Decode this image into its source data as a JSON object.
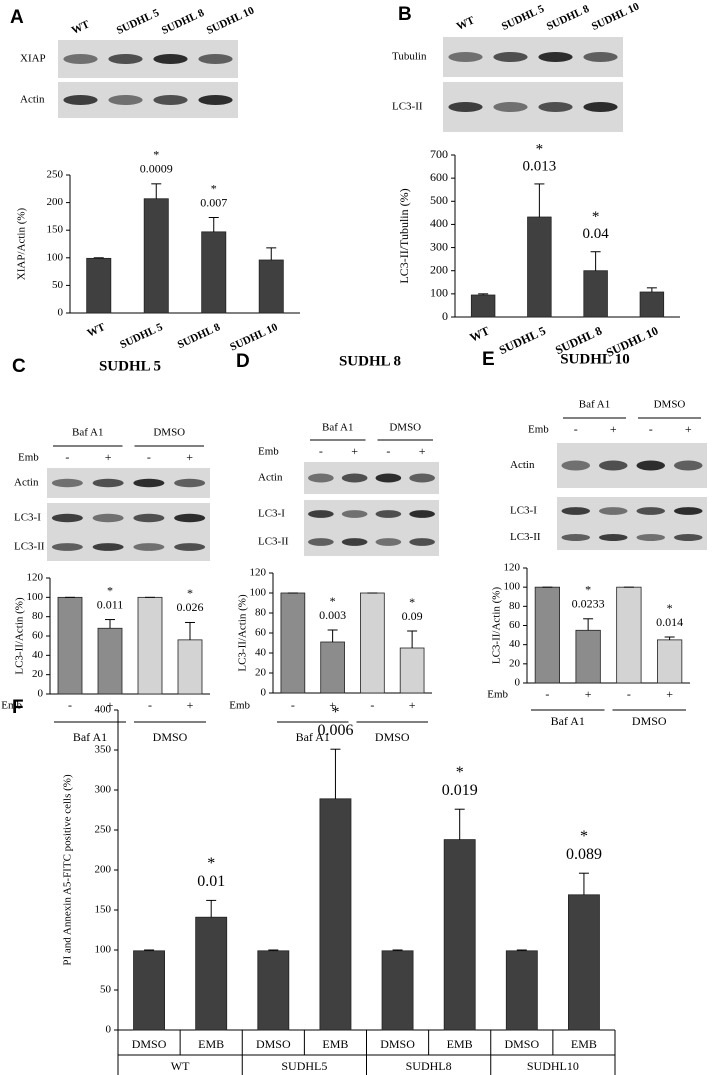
{
  "chart_data": [
    {
      "type": "bar",
      "panel": "A",
      "blot": {
        "lanes": [
          "WT",
          "SUDHL 5",
          "SUDHL 8",
          "SUDHL 10"
        ],
        "rows": [
          "XIAP",
          "Actin"
        ]
      },
      "ylabel": "XIAP/Actin (%)",
      "ylim": [
        0,
        250
      ],
      "yticks": [
        0,
        50,
        100,
        150,
        200,
        250
      ],
      "categories": [
        "WT",
        "SUDHL 5",
        "SUDHL 8",
        "SUDHL 10"
      ],
      "values": [
        99,
        207,
        147,
        96
      ],
      "errors": [
        1,
        27,
        26,
        22
      ],
      "color": "#404040",
      "stars": [
        null,
        "*",
        "*",
        null
      ],
      "annotations": [
        null,
        "0.0009",
        "0.007",
        null
      ]
    },
    {
      "type": "bar",
      "panel": "B",
      "blot": {
        "lanes": [
          "WT",
          "SUDHL 5",
          "SUDHL 8",
          "SUDHL 10"
        ],
        "rows": [
          "Tubulin",
          "LC3-II"
        ]
      },
      "ylabel": "LC3-II/Tubulin (%)",
      "ylim": [
        0,
        700
      ],
      "yticks": [
        0,
        100,
        200,
        300,
        400,
        500,
        600,
        700
      ],
      "categories": [
        "WT",
        "SUDHL 5",
        "SUDHL 8",
        "SUDHL 10"
      ],
      "values": [
        95,
        432,
        200,
        108
      ],
      "errors": [
        5,
        143,
        82,
        18
      ],
      "color": "#404040",
      "stars": [
        null,
        "*",
        "*",
        null
      ],
      "annotations": [
        null,
        "0.013",
        "0.04",
        null
      ]
    },
    {
      "type": "bar",
      "panel": "C",
      "title": "SUDHL 5",
      "blot": {
        "rows": [
          "Actin",
          "LC3-I",
          "LC3-II"
        ]
      },
      "ylabel": "LC3-II/Actin (%)",
      "ylim": [
        0,
        120
      ],
      "yticks": [
        0,
        20,
        40,
        60,
        80,
        100,
        120
      ],
      "x_label": "Emb",
      "categories": [
        "-",
        "+",
        "-",
        "+"
      ],
      "groups": [
        "Baf A1",
        "DMSO"
      ],
      "values": [
        100,
        68,
        100,
        56
      ],
      "errors": [
        0,
        9,
        0,
        18
      ],
      "colors": [
        "#8c8c8c",
        "#8c8c8c",
        "#d3d3d3",
        "#d3d3d3"
      ],
      "stars": [
        null,
        "*",
        null,
        "*"
      ],
      "annotations": [
        null,
        "0.011",
        null,
        "0.026"
      ]
    },
    {
      "type": "bar",
      "panel": "D",
      "title": "SUDHL 8",
      "blot": {
        "rows": [
          "Actin",
          "LC3-I",
          "LC3-II"
        ]
      },
      "ylabel": "LC3-II/Actin (%)",
      "ylim": [
        0,
        120
      ],
      "yticks": [
        0,
        20,
        40,
        60,
        80,
        100,
        120
      ],
      "x_label": "Emb",
      "categories": [
        "-",
        "+",
        "-",
        "+"
      ],
      "groups": [
        "Baf A1",
        "DMSO"
      ],
      "values": [
        100,
        51,
        100,
        45
      ],
      "errors": [
        0,
        12,
        0,
        17
      ],
      "colors": [
        "#8c8c8c",
        "#8c8c8c",
        "#d3d3d3",
        "#d3d3d3"
      ],
      "stars": [
        null,
        "*",
        null,
        "*"
      ],
      "annotations": [
        null,
        "0.003",
        null,
        "0.09"
      ]
    },
    {
      "type": "bar",
      "panel": "E",
      "title": "SUDHL 10",
      "blot": {
        "rows": [
          "Actin",
          "LC3-I",
          "LC3-II"
        ]
      },
      "ylabel": "LC3-II/Actin (%)",
      "ylim": [
        0,
        120
      ],
      "yticks": [
        0,
        20,
        40,
        60,
        80,
        100,
        120
      ],
      "x_label": "Emb",
      "categories": [
        "-",
        "+",
        "-",
        "+"
      ],
      "groups": [
        "Baf A1",
        "DMSO"
      ],
      "values": [
        100,
        55,
        100,
        45
      ],
      "errors": [
        0,
        12,
        0,
        3
      ],
      "colors": [
        "#8c8c8c",
        "#8c8c8c",
        "#d3d3d3",
        "#d3d3d3"
      ],
      "stars": [
        null,
        "*",
        null,
        "*"
      ],
      "annotations": [
        null,
        "0.0233",
        null,
        "0.014"
      ]
    },
    {
      "type": "bar",
      "panel": "F",
      "ylabel": "PI and Annexin A5-FITC  positive cells (%)",
      "ylim": [
        0,
        400
      ],
      "yticks": [
        0,
        50,
        100,
        150,
        200,
        250,
        300,
        350,
        400
      ],
      "categories": [
        "DMSO",
        "EMB",
        "DMSO",
        "EMB",
        "DMSO",
        "EMB",
        "DMSO",
        "EMB"
      ],
      "groups": [
        "WT",
        "SUDHL5",
        "SUDHL8",
        "SUDHL10"
      ],
      "values": [
        99,
        141,
        99,
        289,
        99,
        238,
        99,
        169
      ],
      "errors": [
        1,
        21,
        1,
        62,
        1,
        38,
        1,
        27
      ],
      "color": "#404040",
      "stars": [
        null,
        "*",
        null,
        "*",
        null,
        "*",
        null,
        "*"
      ],
      "annotations": [
        null,
        "0.01",
        null,
        "0.006",
        null,
        "0.019",
        null,
        "0.089"
      ]
    }
  ]
}
